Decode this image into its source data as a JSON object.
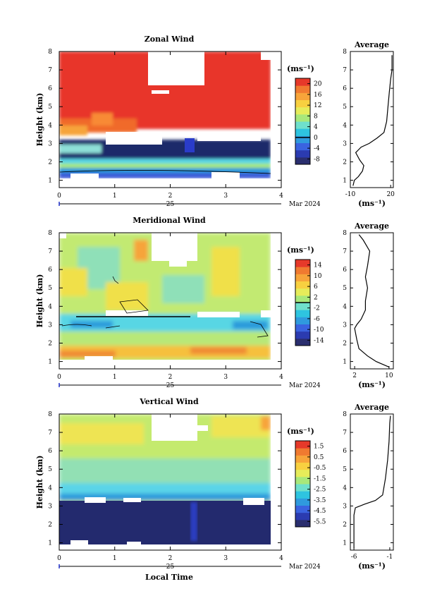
{
  "chart_data": [
    {
      "type": "heatmap",
      "title": "Zonal Wind",
      "ylabel": "Height (km)",
      "xlim": [
        0,
        4
      ],
      "ylim": [
        0.6,
        8
      ],
      "x_ticks": [
        "0",
        "1",
        "2",
        "3",
        "4"
      ],
      "y_ticks": [
        "1",
        "2",
        "3",
        "4",
        "5",
        "6",
        "7",
        "8"
      ],
      "date_label": "25",
      "month_label": "Mar 2024",
      "colorbar": {
        "unit": "(ms⁻¹)",
        "ticks": [
          "20",
          "16",
          "12",
          "8",
          "4",
          "0",
          "-4",
          "-8"
        ],
        "range": [
          -10,
          22
        ]
      },
      "average": {
        "title": "Average",
        "xlabel": "(ms⁻¹)",
        "x_ticks": [
          "-10",
          "20"
        ],
        "xlim": [
          -10,
          22
        ],
        "y_ticks": [
          "1",
          "2",
          "3",
          "4",
          "5",
          "6",
          "7",
          "8"
        ],
        "profile": [
          [
            0.7,
            -8
          ],
          [
            1.0,
            -7
          ],
          [
            1.2,
            -4
          ],
          [
            1.5,
            -1
          ],
          [
            1.8,
            0
          ],
          [
            2.1,
            -3
          ],
          [
            2.5,
            -6
          ],
          [
            2.8,
            -2
          ],
          [
            3.0,
            4
          ],
          [
            3.3,
            10
          ],
          [
            3.6,
            15
          ],
          [
            4.2,
            17
          ],
          [
            5.0,
            18
          ],
          [
            5.8,
            19
          ],
          [
            6.5,
            20
          ],
          [
            7.0,
            21
          ],
          [
            7.8,
            21
          ]
        ]
      }
    },
    {
      "type": "heatmap",
      "title": "Meridional Wind",
      "ylabel": "Height (km)",
      "xlim": [
        0,
        4
      ],
      "ylim": [
        0.6,
        8
      ],
      "x_ticks": [
        "0",
        "1",
        "2",
        "3",
        "4"
      ],
      "y_ticks": [
        "1",
        "2",
        "3",
        "4",
        "5",
        "6",
        "7",
        "8"
      ],
      "date_label": "25",
      "month_label": "Mar 2024",
      "colorbar": {
        "unit": "(ms⁻¹)",
        "ticks": [
          "14",
          "10",
          "6",
          "2",
          "-2",
          "-6",
          "-10",
          "-14"
        ],
        "range": [
          -16,
          16
        ]
      },
      "average": {
        "title": "Average",
        "xlabel": "(ms⁻¹)",
        "x_ticks": [
          "2",
          "10"
        ],
        "xlim": [
          1,
          11
        ],
        "y_ticks": [
          "1",
          "2",
          "3",
          "4",
          "5",
          "6",
          "7",
          "8"
        ],
        "profile": [
          [
            0.7,
            10
          ],
          [
            1.0,
            7
          ],
          [
            1.3,
            5
          ],
          [
            1.7,
            3
          ],
          [
            2.2,
            2.5
          ],
          [
            2.8,
            2
          ],
          [
            3.0,
            2.5
          ],
          [
            3.3,
            3.5
          ],
          [
            3.8,
            4.5
          ],
          [
            4.3,
            4.5
          ],
          [
            5.0,
            5
          ],
          [
            5.6,
            4.5
          ],
          [
            6.2,
            5
          ],
          [
            7.0,
            5.5
          ],
          [
            7.6,
            4
          ],
          [
            7.9,
            3
          ]
        ]
      }
    },
    {
      "type": "heatmap",
      "title": "Vertical Wind",
      "ylabel": "Height (km)",
      "xlabel": "Local Time",
      "xlim": [
        0,
        4
      ],
      "ylim": [
        0.6,
        8
      ],
      "x_ticks": [
        "0",
        "1",
        "2",
        "3",
        "4"
      ],
      "y_ticks": [
        "1",
        "2",
        "3",
        "4",
        "5",
        "6",
        "7",
        "8"
      ],
      "date_label": "25",
      "month_label": "Mar 2024",
      "colorbar": {
        "unit": "(ms⁻¹)",
        "ticks": [
          "1.5",
          "0.5",
          "-0.5",
          "-1.5",
          "-2.5",
          "-3.5",
          "-4.5",
          "-5.5"
        ],
        "range": [
          -6,
          2
        ]
      },
      "average": {
        "title": "Average",
        "xlabel": "(ms⁻¹)",
        "x_ticks": [
          "-6",
          "-1"
        ],
        "xlim": [
          -6.5,
          -0.5
        ],
        "y_ticks": [
          "1",
          "2",
          "3",
          "4",
          "5",
          "6",
          "7",
          "8"
        ],
        "profile": [
          [
            0.7,
            -6
          ],
          [
            1.5,
            -6
          ],
          [
            2.5,
            -6
          ],
          [
            2.9,
            -5.8
          ],
          [
            3.1,
            -4.5
          ],
          [
            3.3,
            -3
          ],
          [
            3.6,
            -2
          ],
          [
            4.5,
            -1.6
          ],
          [
            5.5,
            -1.3
          ],
          [
            6.5,
            -1.1
          ],
          [
            7.5,
            -1
          ],
          [
            7.9,
            -0.9
          ]
        ]
      }
    }
  ]
}
